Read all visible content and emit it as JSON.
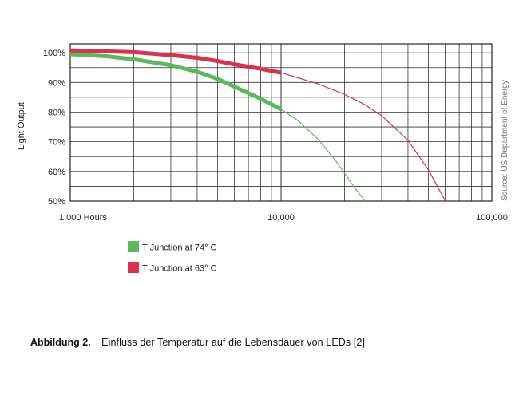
{
  "chart_data": {
    "type": "line",
    "ylabel": "Light Output",
    "xscale": "log",
    "xlim": [
      1000,
      100000
    ],
    "ylim": [
      50,
      103
    ],
    "xticks": [
      {
        "value": 1000,
        "label": "1,000 Hours"
      },
      {
        "value": 10000,
        "label": "10,000"
      },
      {
        "value": 100000,
        "label": "100,000"
      }
    ],
    "yticks": [
      {
        "value": 100,
        "label": "100%"
      },
      {
        "value": 90,
        "label": "90%"
      },
      {
        "value": 80,
        "label": "80%"
      },
      {
        "value": 70,
        "label": "70%"
      },
      {
        "value": 60,
        "label": "60%"
      },
      {
        "value": 50,
        "label": "50%"
      }
    ],
    "grid": true,
    "legend_position": "bottom-left",
    "source_note": "Source: US Department of Energy",
    "series": [
      {
        "name": "T Junction at 74° C",
        "color": "#5cb85c",
        "thick_until": 10000,
        "x": [
          1000,
          1500,
          2000,
          3000,
          4000,
          5000,
          6000,
          8000,
          10000,
          12000,
          15000,
          18000,
          20000,
          22000,
          25000
        ],
        "y": [
          99.5,
          98.8,
          97.8,
          95.8,
          93.6,
          91.2,
          88.6,
          84.5,
          81,
          77.2,
          70.8,
          64,
          59.4,
          55.2,
          50
        ]
      },
      {
        "name": "T Junction at 63° C",
        "color": "#d9314e",
        "thick_until": 10000,
        "x": [
          1000,
          2000,
          3000,
          4000,
          5000,
          6000,
          8000,
          10000,
          12000,
          15000,
          20000,
          25000,
          30000,
          40000,
          50000,
          60000
        ],
        "y": [
          100.8,
          100.2,
          99.2,
          98.3,
          97.2,
          96.1,
          94.6,
          93.3,
          91.6,
          89.5,
          86,
          82.5,
          78.8,
          70.5,
          60.5,
          50.2
        ]
      }
    ]
  },
  "caption": {
    "figure": "Abbildung 2.",
    "text": "Einfluss der Temperatur auf die Lebensdauer von LEDs [2]"
  }
}
